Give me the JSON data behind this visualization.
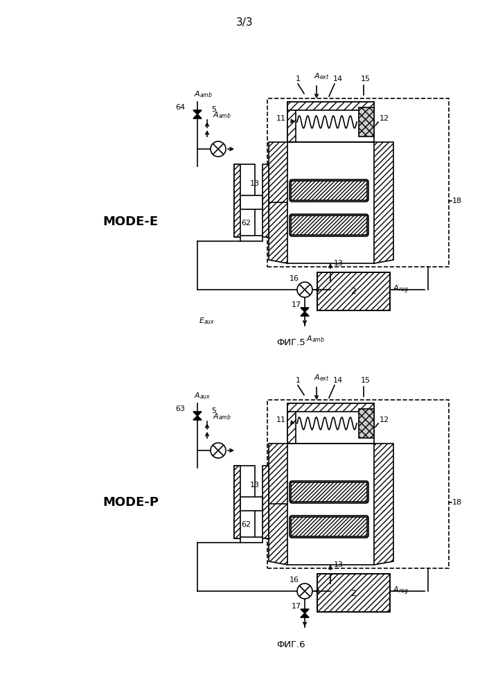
{
  "title": "3/3",
  "fig5_mode": "MODE-E",
  "fig6_mode": "MODE-P",
  "fig5_cap": "ФИГ.5",
  "fig6_cap": "ФИГ.6",
  "bg": "#ffffff"
}
